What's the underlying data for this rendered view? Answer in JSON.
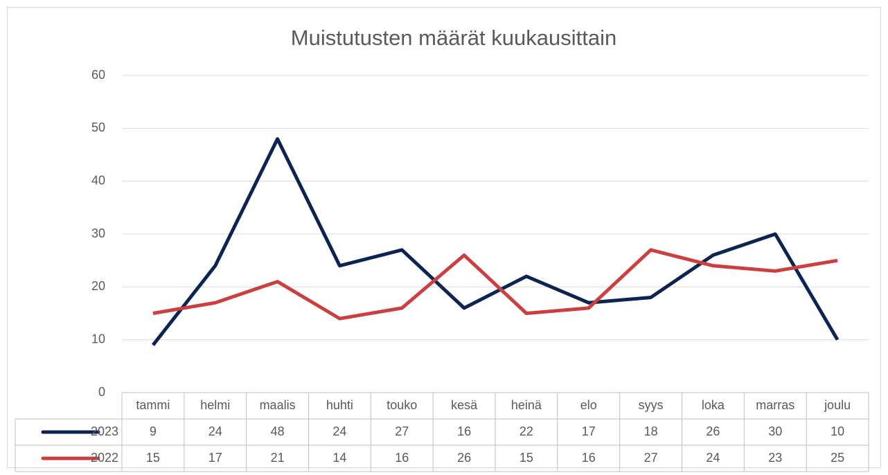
{
  "chart_data": {
    "type": "line",
    "title": "Muistutusten määrät kuukausittain",
    "categories": [
      "tammi",
      "helmi",
      "maalis",
      "huhti",
      "touko",
      "kesä",
      "heinä",
      "elo",
      "syys",
      "loka",
      "marras",
      "joulu"
    ],
    "series": [
      {
        "name": "2023",
        "color": "#0b2451",
        "values": [
          9,
          24,
          48,
          24,
          27,
          16,
          22,
          17,
          18,
          26,
          30,
          10
        ]
      },
      {
        "name": "2022",
        "color": "#cc3f3f",
        "values": [
          15,
          17,
          21,
          14,
          16,
          26,
          15,
          16,
          27,
          24,
          23,
          25
        ]
      }
    ],
    "ylim": [
      0,
      60
    ],
    "yticks": [
      0,
      10,
      20,
      30,
      40,
      50,
      60
    ],
    "grid": true,
    "data_table": true
  }
}
